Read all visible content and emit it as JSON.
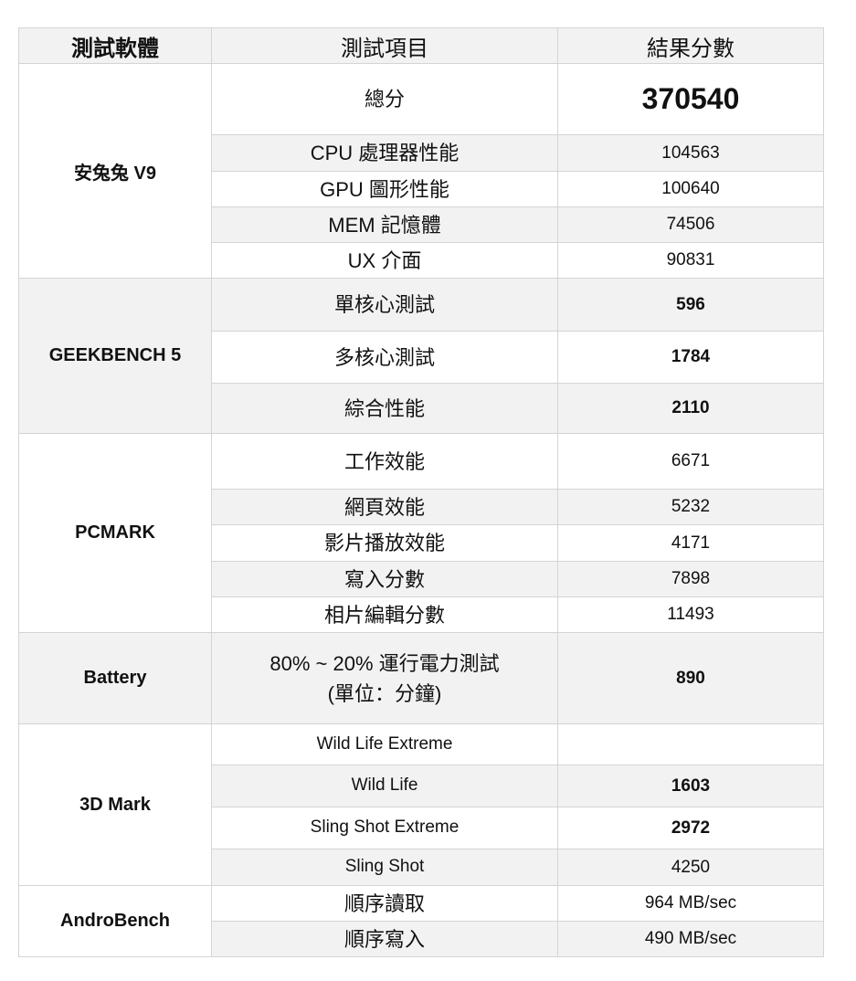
{
  "headers": [
    "測試軟體",
    "測試項目",
    "結果分數"
  ],
  "shade_color": "#f2f2f2",
  "groups": [
    {
      "name": "安兔兔 V9",
      "shaded": false,
      "rows": [
        {
          "item": "總分",
          "value": "370540",
          "bold": true,
          "big": true,
          "h": 78
        },
        {
          "item": "CPU  處理器性能",
          "value": "104563",
          "h": 40
        },
        {
          "item": "GPU  圖形性能",
          "value": "100640",
          "h": 39
        },
        {
          "item": "MEM  記憶體",
          "value": "74506",
          "h": 39
        },
        {
          "item": "UX  介面",
          "value": "90831",
          "h": 39
        }
      ]
    },
    {
      "name": "GEEKBENCH 5",
      "shaded": true,
      "rows": [
        {
          "item": "單核心測試",
          "value": "596",
          "bold": true,
          "h": 58
        },
        {
          "item": "多核心測試",
          "value": "1784",
          "bold": true,
          "h": 57
        },
        {
          "item": "綜合性能",
          "value": "2110",
          "bold": true,
          "h": 55
        }
      ]
    },
    {
      "name": "PCMARK",
      "shaded": false,
      "rows": [
        {
          "item": "工作效能",
          "value": "6671",
          "h": 61
        },
        {
          "item": "網頁效能",
          "value": "5232",
          "h": 39
        },
        {
          "item": "影片播放效能",
          "value": "4171",
          "h": 40
        },
        {
          "item": "寫入分數",
          "value": "7898",
          "h": 39
        },
        {
          "item": "相片編輯分數",
          "value": "11493",
          "h": 39
        }
      ]
    },
    {
      "name": "Battery",
      "shaded": true,
      "rows": [
        {
          "item": "80% ~ 20%  運行電力測試\n(單位：分鐘)",
          "value": "890",
          "bold": true,
          "h": 100
        }
      ]
    },
    {
      "name": "3D Mark",
      "shaded": false,
      "rows": [
        {
          "item": "Wild Life Extreme",
          "value": "",
          "en": true,
          "h": 45
        },
        {
          "item": "Wild Life",
          "value": "1603",
          "bold": true,
          "en": true,
          "h": 46
        },
        {
          "item": "Sling Shot Extreme",
          "value": "2972",
          "bold": true,
          "en": true,
          "h": 46
        },
        {
          "item": "Sling Shot",
          "value": "4250",
          "en": true,
          "h": 40
        }
      ]
    },
    {
      "name": "AndroBench",
      "shaded": false,
      "rows": [
        {
          "item": "順序讀取",
          "value": "964 MB/sec",
          "h": 39
        },
        {
          "item": "順序寫入",
          "value": "490 MB/sec",
          "h": 39
        }
      ]
    }
  ]
}
